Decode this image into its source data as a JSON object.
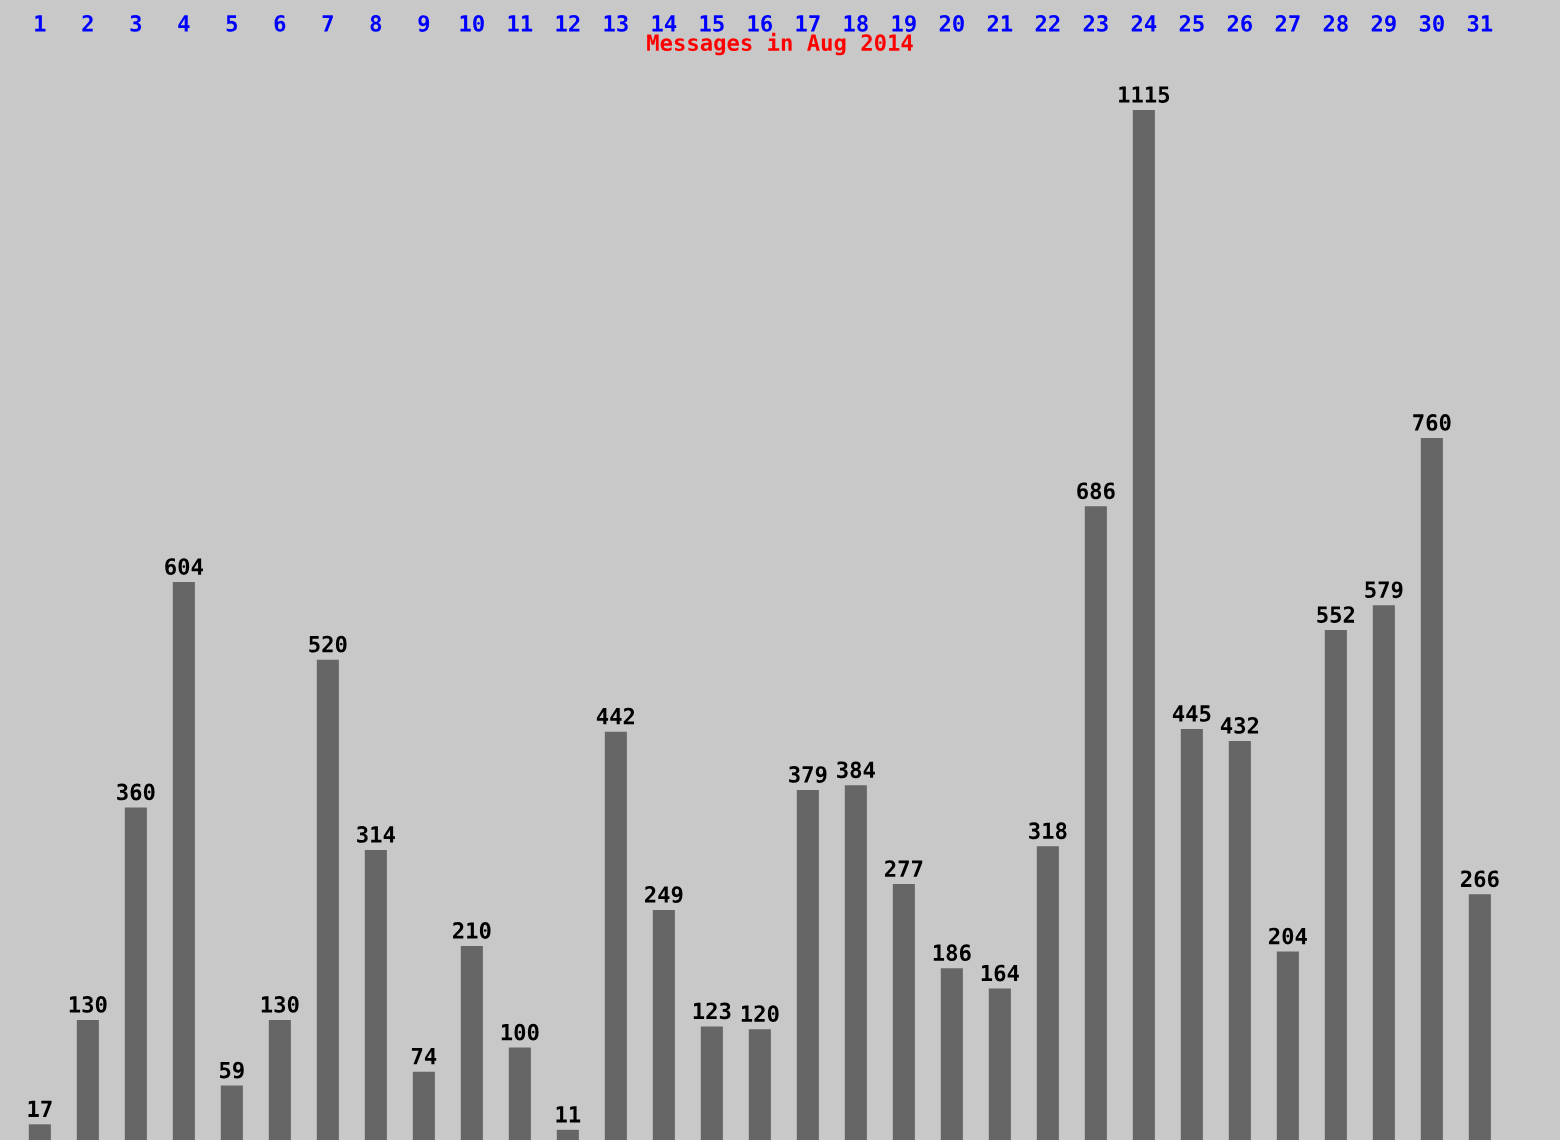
{
  "chart_data": {
    "type": "bar",
    "title": "Messages in Aug 2014",
    "categories": [
      "1",
      "2",
      "3",
      "4",
      "5",
      "6",
      "7",
      "8",
      "9",
      "10",
      "11",
      "12",
      "13",
      "14",
      "15",
      "16",
      "17",
      "18",
      "19",
      "20",
      "21",
      "22",
      "23",
      "24",
      "25",
      "26",
      "27",
      "28",
      "29",
      "30",
      "31"
    ],
    "values": [
      17,
      130,
      360,
      604,
      59,
      130,
      520,
      314,
      74,
      210,
      100,
      11,
      442,
      249,
      123,
      120,
      379,
      384,
      277,
      186,
      164,
      318,
      686,
      1115,
      445,
      432,
      204,
      552,
      579,
      760,
      266
    ],
    "color": "#666666",
    "data_labels": true,
    "grid": false,
    "legend": false,
    "tick_labels": "x"
  }
}
